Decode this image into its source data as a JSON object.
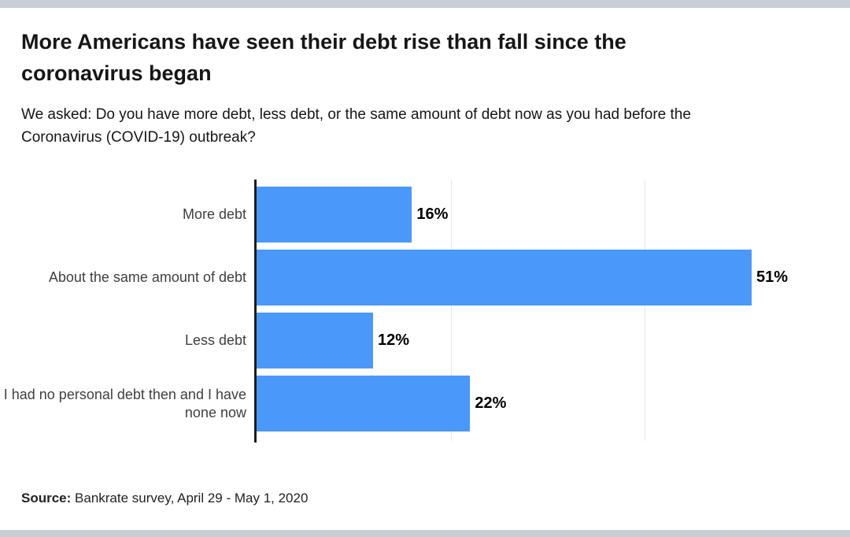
{
  "page": {
    "title": "More Americans have seen their debt rise than fall since the coronavirus began",
    "subtitle": "We asked: Do you have more debt, less debt, or the same amount of debt now as you had before the Coronavirus (COVID-19) outbreak?",
    "source_label": "Source:",
    "source_text": " Bankrate survey, April 29 - May 1, 2020"
  },
  "colors": {
    "bar": "#4a98f9",
    "frame_strip": "#c9cdd4",
    "axis": "#1c1c1c",
    "gridline": "#e7e7e7",
    "category_label": "#3f3f3f",
    "title_text": "#161616"
  },
  "chart_data": {
    "type": "bar",
    "orientation": "horizontal",
    "title": "More Americans have seen their debt rise than fall since the coronavirus began",
    "subtitle": "We asked: Do you have more debt, less debt, or the same amount of debt now as you had before the Coronavirus (COVID-19) outbreak?",
    "categories": [
      "More debt",
      "About the same amount of debt",
      "Less debt",
      "I had no personal debt then and I have none now"
    ],
    "values": [
      16,
      51,
      12,
      22
    ],
    "value_labels": [
      "16%",
      "51%",
      "12%",
      "22%"
    ],
    "xlabel": "",
    "ylabel": "",
    "xlim": [
      0,
      60
    ],
    "gridlines_at": [
      20,
      40
    ],
    "grid": true,
    "legend": "none",
    "data_label_position": "outside-end",
    "source": "Source: Bankrate survey, April 29 - May 1, 2020"
  }
}
